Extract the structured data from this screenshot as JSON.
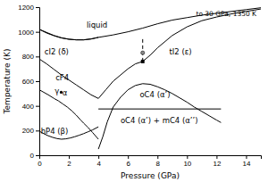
{
  "chart_data": {
    "type": "line",
    "xlabel": "Pressure (GPa)",
    "ylabel": "Temperature (K)",
    "xlim": [
      0,
      15
    ],
    "ylim": [
      0,
      1200
    ],
    "xticks": [
      0,
      2,
      4,
      6,
      8,
      10,
      12,
      14
    ],
    "yticks": [
      0,
      200,
      400,
      600,
      800,
      1000,
      1200
    ],
    "series": [
      {
        "type": "line",
        "color": "#000000",
        "line_style": "solid",
        "x": [
          0.0,
          0.5,
          1.0,
          1.5,
          2.0,
          2.5,
          3.0,
          3.5,
          4.0,
          5.0,
          6.0,
          7.0,
          8.0,
          9.0,
          10.0,
          11.0,
          12.0,
          13.0,
          14.0,
          15.0
        ],
        "values": [
          1020,
          990,
          968,
          950,
          940,
          935,
          935,
          942,
          955,
          975,
          1000,
          1030,
          1065,
          1095,
          1115,
          1135,
          1150,
          1165,
          1180,
          1195
        ]
      },
      {
        "type": "line",
        "color": "#000000",
        "line_style": "solid",
        "x": [
          0.0,
          0.3,
          0.6,
          1.0,
          1.5,
          2.0,
          2.5,
          3.0,
          3.5,
          4.0
        ],
        "values": [
          1020,
          1005,
          990,
          970,
          952,
          940,
          935,
          935,
          942,
          955
        ]
      },
      {
        "type": "line",
        "color": "#000000",
        "line_style": "solid",
        "x": [
          0.0,
          0.5,
          1.0,
          1.5,
          2.0,
          2.5,
          3.0,
          3.5,
          4.0
        ],
        "values": [
          780,
          740,
          695,
          650,
          610,
          570,
          530,
          490,
          460
        ]
      },
      {
        "type": "line",
        "color": "#000000",
        "line_style": "solid",
        "x": [
          0.0,
          0.3,
          0.6,
          1.0,
          1.3,
          1.6,
          1.9,
          2.2,
          2.5,
          2.8,
          3.0,
          3.3,
          3.6,
          4.0
        ],
        "values": [
          530,
          510,
          490,
          460,
          440,
          415,
          390,
          360,
          325,
          285,
          260,
          225,
          185,
          130
        ]
      },
      {
        "type": "line",
        "color": "#000000",
        "line_style": "solid",
        "x": [
          0.0,
          0.3,
          0.6,
          0.9,
          1.2,
          1.5,
          1.8,
          2.1,
          2.4,
          2.7,
          3.0,
          3.3,
          3.6,
          4.0
        ],
        "values": [
          195,
          175,
          158,
          145,
          135,
          130,
          133,
          140,
          150,
          162,
          175,
          190,
          205,
          230
        ]
      },
      {
        "type": "line",
        "color": "#000000",
        "line_style": "solid",
        "x": [
          4.0,
          4.5,
          5.0,
          5.5,
          6.0,
          6.5,
          7.0,
          7.5,
          8.0,
          9.0,
          10.0,
          11.0,
          12.0,
          13.0,
          14.0,
          15.0
        ],
        "values": [
          460,
          530,
          600,
          650,
          700,
          740,
          760,
          810,
          870,
          970,
          1040,
          1090,
          1120,
          1145,
          1165,
          1185
        ]
      },
      {
        "type": "line",
        "color": "#000000",
        "line_style": "solid",
        "x": [
          4.0,
          4.3,
          4.6,
          5.0,
          5.5,
          6.0,
          6.5,
          7.0,
          7.5,
          8.0,
          8.5,
          9.0,
          9.5,
          10.0,
          10.5,
          11.0,
          11.5,
          12.0,
          12.3
        ],
        "values": [
          50,
          150,
          270,
          390,
          470,
          530,
          565,
          580,
          575,
          555,
          530,
          500,
          465,
          430,
          390,
          355,
          320,
          285,
          265
        ]
      },
      {
        "type": "line",
        "color": "#000000",
        "line_style": "solid",
        "x": [
          4.0,
          12.3
        ],
        "values": [
          375,
          375
        ]
      },
      {
        "type": "line",
        "color": "#000000",
        "line_style": "dashed",
        "x": [
          7.0,
          7.0
        ],
        "values": [
          760,
          960
        ]
      },
      {
        "type": "scatter",
        "color": "#000000",
        "marker": "square",
        "x": [
          7.0
        ],
        "values": [
          760
        ]
      },
      {
        "type": "scatter",
        "color": "#888888",
        "marker": "circle",
        "x": [
          7.0
        ],
        "values": [
          830
        ]
      },
      {
        "type": "scatter",
        "color": "#000000",
        "marker": "dot",
        "x": [
          1.48
        ],
        "values": [
          510
        ]
      }
    ],
    "annotations": [
      {
        "text": "liquid",
        "x": 3.2,
        "y": 1055
      },
      {
        "text": "cI2 (δ)",
        "x": 0.35,
        "y": 840
      },
      {
        "text": "cF4",
        "x": 1.1,
        "y": 630
      },
      {
        "text": "γ",
        "x": 1.05,
        "y": 520
      },
      {
        "text": "α",
        "x": 1.55,
        "y": 505
      },
      {
        "text": "hP4 (β)",
        "x": 0.1,
        "y": 195
      },
      {
        "text": "tI2 (ε)",
        "x": 8.8,
        "y": 840
      },
      {
        "text": "oC4 (α’)",
        "x": 6.8,
        "y": 490
      },
      {
        "text": "oC4 (α’) + mC4 (α’’)",
        "x": 5.5,
        "y": 285
      }
    ],
    "note": {
      "text": "to 30 GPa, 1350 K",
      "x": 14.7,
      "y": 1150
    }
  }
}
